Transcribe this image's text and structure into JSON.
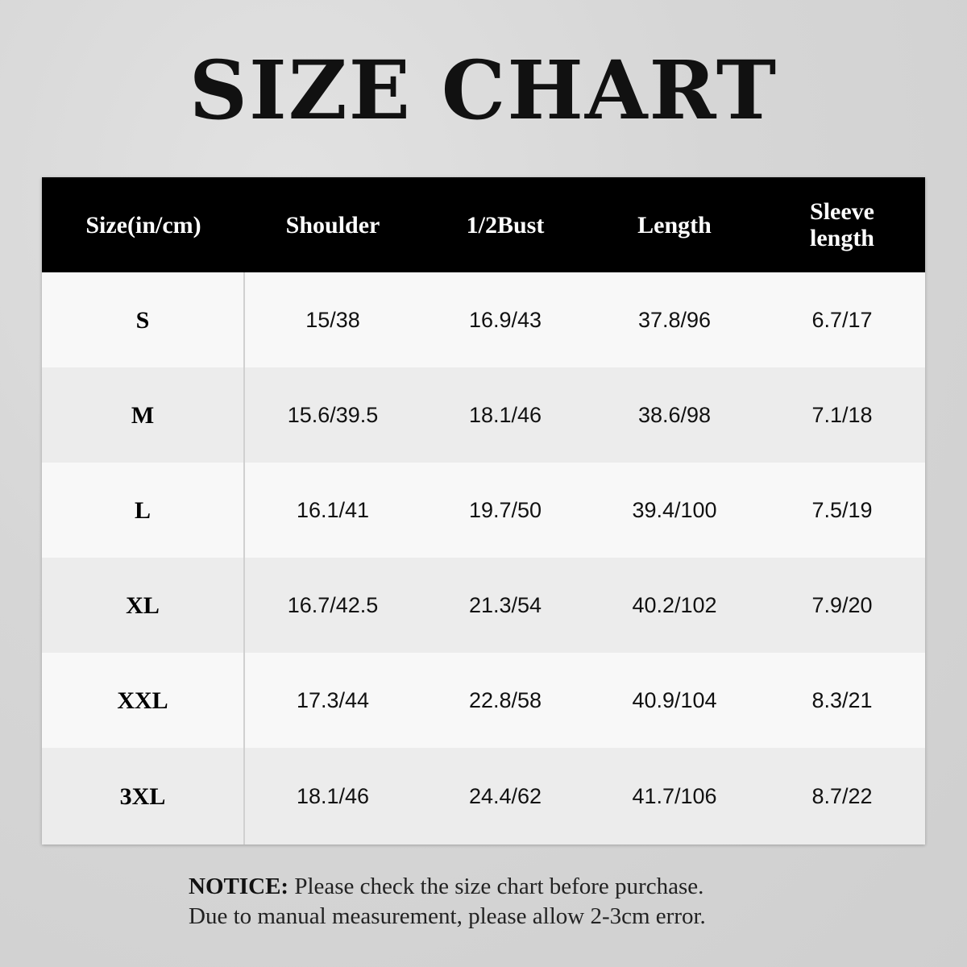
{
  "title": "SIZE CHART",
  "table": {
    "headers": [
      "Size(in/cm)",
      "Shoulder",
      "1/2Bust",
      "Length",
      "Sleeve length"
    ],
    "rows": [
      [
        "S",
        "15/38",
        "16.9/43",
        "37.8/96",
        "6.7/17"
      ],
      [
        "M",
        "15.6/39.5",
        "18.1/46",
        "38.6/98",
        "7.1/18"
      ],
      [
        "L",
        "16.1/41",
        "19.7/50",
        "39.4/100",
        "7.5/19"
      ],
      [
        "XL",
        "16.7/42.5",
        "21.3/54",
        "40.2/102",
        "7.9/20"
      ],
      [
        "XXL",
        "17.3/44",
        "22.8/58",
        "40.9/104",
        "8.3/21"
      ],
      [
        "3XL",
        "18.1/46",
        "24.4/62",
        "41.7/106",
        "8.7/22"
      ]
    ]
  },
  "notice": {
    "label": "NOTICE:",
    "line1": "Please check the size chart before purchase.",
    "line2": "Due to manual measurement, please allow 2-3cm error."
  },
  "colors": {
    "header_bg": "#000000",
    "row_light": "#f8f8f8",
    "row_dark": "#ececec"
  }
}
